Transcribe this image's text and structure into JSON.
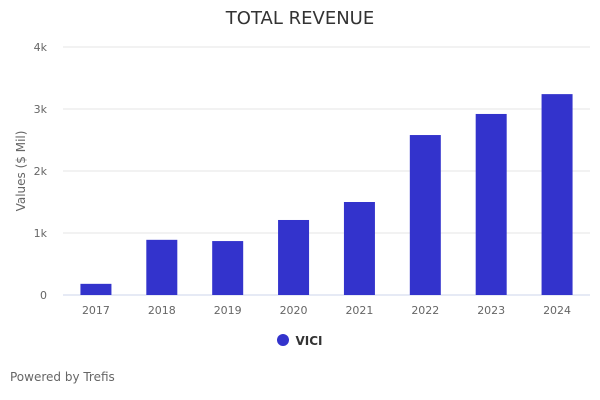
{
  "chart_data": {
    "type": "bar",
    "title": "TOTAL REVENUE",
    "xlabel": "",
    "ylabel": "Values ($ Mil)",
    "categories": [
      "2017",
      "2018",
      "2019",
      "2020",
      "2021",
      "2022",
      "2023",
      "2024"
    ],
    "series": [
      {
        "name": "VICI",
        "color": "#3333cc",
        "values": [
          180,
          890,
          870,
          1210,
          1500,
          2580,
          2920,
          3240
        ]
      }
    ],
    "ylim": [
      0,
      4000
    ],
    "yticks": [
      0,
      1000,
      2000,
      3000,
      4000
    ],
    "ytick_labels": [
      "0",
      "1k",
      "2k",
      "3k",
      "4k"
    ],
    "grid": true,
    "legend": "bottom-center"
  },
  "footer": {
    "credit": "Powered by Trefis"
  }
}
